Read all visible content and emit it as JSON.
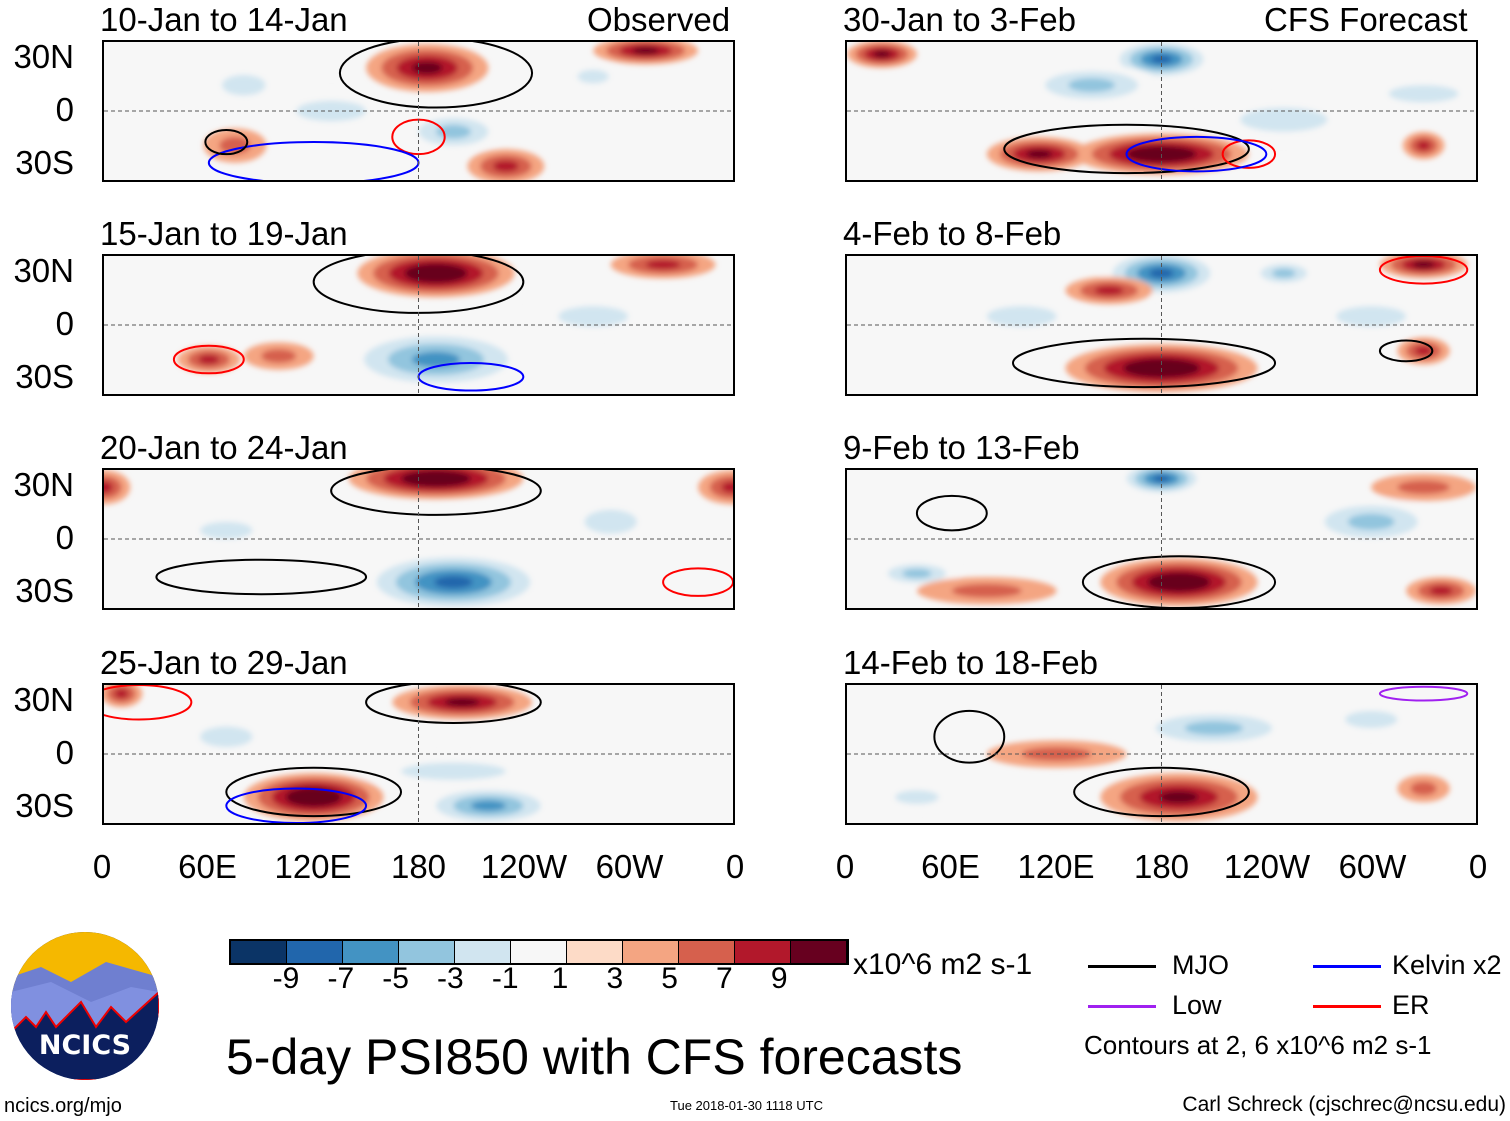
{
  "header": {
    "observed_label": "Observed",
    "forecast_label": "CFS Forecast"
  },
  "lat_labels": [
    "30N",
    "0",
    "30S"
  ],
  "lon_labels": [
    "0",
    "60E",
    "120E",
    "180",
    "120W",
    "60W",
    "0"
  ],
  "colorbar": {
    "colors": [
      "#0b3466",
      "#2166ac",
      "#4393c3",
      "#92c5de",
      "#d1e5f0",
      "#f7f7f7",
      "#fddbc7",
      "#f4a582",
      "#d6604d",
      "#b2182b",
      "#67001f"
    ],
    "labels": [
      "-9",
      "-7",
      "-5",
      "-3",
      "-1",
      "1",
      "3",
      "5",
      "7",
      "9"
    ],
    "units": "x10^6 m2 s-1"
  },
  "legend": {
    "items": [
      {
        "label": "MJO",
        "color": "#000000"
      },
      {
        "label": "Kelvin x2",
        "color": "#0000ff"
      },
      {
        "label": "Low",
        "color": "#a020f0"
      },
      {
        "label": "ER",
        "color": "#ff0000"
      }
    ],
    "contours_note": "Contours at 2, 6 x10^6 m2 s-1"
  },
  "title": "5-day PSI850 with CFS forecasts",
  "logo_text": "NCICS",
  "footer": {
    "left": "ncics.org/mjo",
    "center": "Tue 2018-01-30 1118 UTC",
    "right": "Carl Schreck (cjschrec@ncsu.edu)"
  },
  "panels": [
    {
      "title": "10-Jan to 14-Jan",
      "features": [
        [
          185,
          25,
          7,
          35,
          14
        ],
        [
          310,
          35,
          7,
          30,
          8
        ],
        [
          75,
          -20,
          3,
          18,
          10
        ],
        [
          230,
          -32,
          5,
          22,
          10
        ],
        [
          200,
          -12,
          -5,
          30,
          12
        ],
        [
          130,
          0,
          -3,
          40,
          12
        ],
        [
          80,
          15,
          -3,
          25,
          12
        ],
        [
          280,
          20,
          -3,
          18,
          8
        ]
      ],
      "contours": [
        [
          "#000",
          190,
          22,
          55,
          20
        ],
        [
          "#f00",
          180,
          -15,
          15,
          10
        ],
        [
          "#00f",
          120,
          -30,
          60,
          12
        ],
        [
          "#000",
          70,
          -18,
          12,
          7
        ]
      ]
    },
    {
      "title": "15-Jan to 19-Jan",
      "features": [
        [
          190,
          30,
          9,
          45,
          14
        ],
        [
          320,
          35,
          5,
          30,
          8
        ],
        [
          190,
          -20,
          -7,
          55,
          18
        ],
        [
          60,
          -20,
          5,
          18,
          8
        ],
        [
          100,
          -18,
          3,
          20,
          8
        ],
        [
          280,
          5,
          -3,
          40,
          12
        ]
      ],
      "contours": [
        [
          "#000",
          180,
          25,
          60,
          18
        ],
        [
          "#f00",
          60,
          -20,
          20,
          8
        ],
        [
          "#00f",
          210,
          -30,
          30,
          8
        ]
      ]
    },
    {
      "title": "20-Jan to 24-Jan",
      "features": [
        [
          190,
          35,
          9,
          50,
          12
        ],
        [
          360,
          30,
          5,
          20,
          10
        ],
        [
          0,
          30,
          5,
          15,
          10
        ],
        [
          200,
          -25,
          -9,
          55,
          18
        ],
        [
          290,
          10,
          -3,
          30,
          14
        ],
        [
          70,
          5,
          -3,
          30,
          10
        ]
      ],
      "contours": [
        [
          "#000",
          190,
          28,
          60,
          14
        ],
        [
          "#000",
          90,
          -22,
          60,
          10
        ],
        [
          "#f00",
          340,
          -25,
          20,
          8
        ]
      ]
    },
    {
      "title": "25-Jan to 29-Jan",
      "features": [
        [
          205,
          30,
          7,
          40,
          10
        ],
        [
          120,
          -25,
          9,
          40,
          14
        ],
        [
          10,
          35,
          5,
          12,
          8
        ],
        [
          220,
          -30,
          -7,
          40,
          12
        ],
        [
          200,
          -10,
          -3,
          60,
          10
        ],
        [
          70,
          10,
          -3,
          30,
          12
        ]
      ],
      "contours": [
        [
          "#000",
          200,
          30,
          50,
          12
        ],
        [
          "#000",
          120,
          -22,
          50,
          14
        ],
        [
          "#00f",
          110,
          -30,
          40,
          10
        ],
        [
          "#f00",
          20,
          30,
          30,
          10
        ]
      ]
    },
    {
      "title": "30-Jan to 3-Feb",
      "features": [
        [
          20,
          33,
          7,
          20,
          8
        ],
        [
          180,
          30,
          -9,
          30,
          12
        ],
        [
          140,
          15,
          -5,
          40,
          12
        ],
        [
          180,
          -25,
          9,
          50,
          12
        ],
        [
          110,
          -25,
          7,
          30,
          10
        ],
        [
          250,
          -5,
          -3,
          50,
          14
        ],
        [
          330,
          -20,
          5,
          12,
          8
        ],
        [
          330,
          10,
          -3,
          40,
          10
        ]
      ],
      "contours": [
        [
          "#000",
          160,
          -22,
          70,
          14
        ],
        [
          "#f00",
          230,
          -25,
          15,
          8
        ],
        [
          "#00f",
          200,
          -25,
          40,
          10
        ]
      ]
    },
    {
      "title": "4-Feb to 8-Feb",
      "features": [
        [
          180,
          30,
          -9,
          35,
          14
        ],
        [
          150,
          20,
          5,
          25,
          8
        ],
        [
          180,
          -25,
          9,
          55,
          14
        ],
        [
          330,
          35,
          7,
          25,
          8
        ],
        [
          330,
          -15,
          5,
          15,
          8
        ],
        [
          100,
          5,
          -3,
          40,
          12
        ],
        [
          300,
          5,
          -3,
          40,
          12
        ],
        [
          250,
          30,
          -5,
          20,
          8
        ]
      ],
      "contours": [
        [
          "#000",
          170,
          -22,
          75,
          14
        ],
        [
          "#f00",
          330,
          32,
          25,
          8
        ],
        [
          "#000",
          320,
          -15,
          15,
          6
        ]
      ]
    },
    {
      "title": "9-Feb to 13-Feb",
      "features": [
        [
          180,
          35,
          -9,
          25,
          10
        ],
        [
          300,
          10,
          -5,
          40,
          14
        ],
        [
          40,
          -20,
          -5,
          25,
          8
        ],
        [
          190,
          -25,
          9,
          45,
          14
        ],
        [
          80,
          -30,
          3,
          40,
          8
        ],
        [
          340,
          -30,
          5,
          20,
          8
        ],
        [
          330,
          30,
          3,
          30,
          8
        ]
      ],
      "contours": [
        [
          "#000",
          190,
          -25,
          55,
          15
        ],
        [
          "#000",
          60,
          15,
          20,
          10
        ]
      ]
    },
    {
      "title": "14-Feb to 18-Feb",
      "features": [
        [
          210,
          15,
          -5,
          50,
          12
        ],
        [
          190,
          -25,
          7,
          45,
          14
        ],
        [
          40,
          -25,
          -3,
          25,
          8
        ],
        [
          120,
          0,
          3,
          40,
          8
        ],
        [
          330,
          -20,
          3,
          15,
          8
        ],
        [
          300,
          20,
          -3,
          30,
          10
        ]
      ],
      "contours": [
        [
          "#000",
          180,
          -22,
          50,
          14
        ],
        [
          "#000",
          70,
          10,
          20,
          15
        ],
        [
          "#a020f0",
          330,
          35,
          25,
          4
        ]
      ]
    }
  ]
}
